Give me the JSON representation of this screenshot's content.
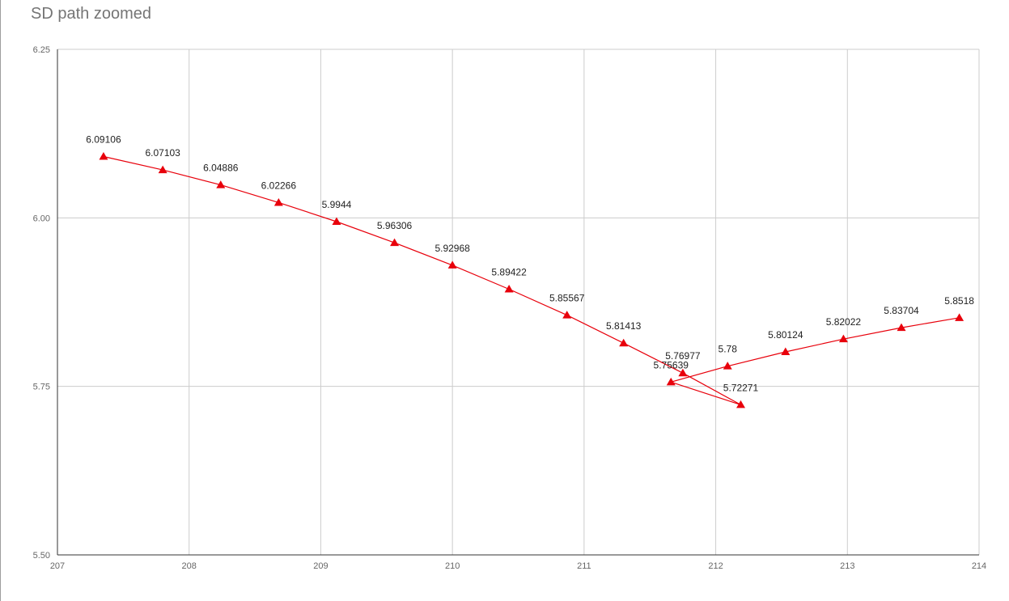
{
  "chart_data": {
    "type": "scatter",
    "title": "SD path zoomed",
    "xlabel": "",
    "ylabel": "",
    "xlim": [
      207,
      214
    ],
    "ylim": [
      5.5,
      6.25
    ],
    "x_ticks": [
      "207",
      "208",
      "209",
      "210",
      "211",
      "212",
      "213",
      "214"
    ],
    "y_ticks": [
      "5.50",
      "5.75",
      "6.00",
      "6.25"
    ],
    "grid": true,
    "legend": "none",
    "series": [
      {
        "color": "#e8000b",
        "marker": "triangle",
        "x": [
          207.35,
          207.8,
          208.24,
          208.68,
          209.12,
          209.56,
          210.0,
          210.43,
          210.87,
          211.3,
          211.75,
          212.19,
          211.66,
          212.09,
          212.53,
          212.97,
          213.41,
          213.85
        ],
        "y": [
          6.09106,
          6.07103,
          6.04886,
          6.02266,
          5.9944,
          5.96306,
          5.92968,
          5.89422,
          5.85567,
          5.81413,
          5.76977,
          5.72271,
          5.75639,
          5.78,
          5.80124,
          5.82022,
          5.83704,
          5.8518
        ],
        "labels": [
          "6.09106",
          "6.07103",
          "6.04886",
          "6.02266",
          "5.9944",
          "5.96306",
          "5.92968",
          "5.89422",
          "5.85567",
          "5.81413",
          "5.76977",
          "5.72271",
          "5.75639",
          "5.78",
          "5.80124",
          "5.82022",
          "5.83704",
          "5.8518"
        ]
      }
    ]
  }
}
